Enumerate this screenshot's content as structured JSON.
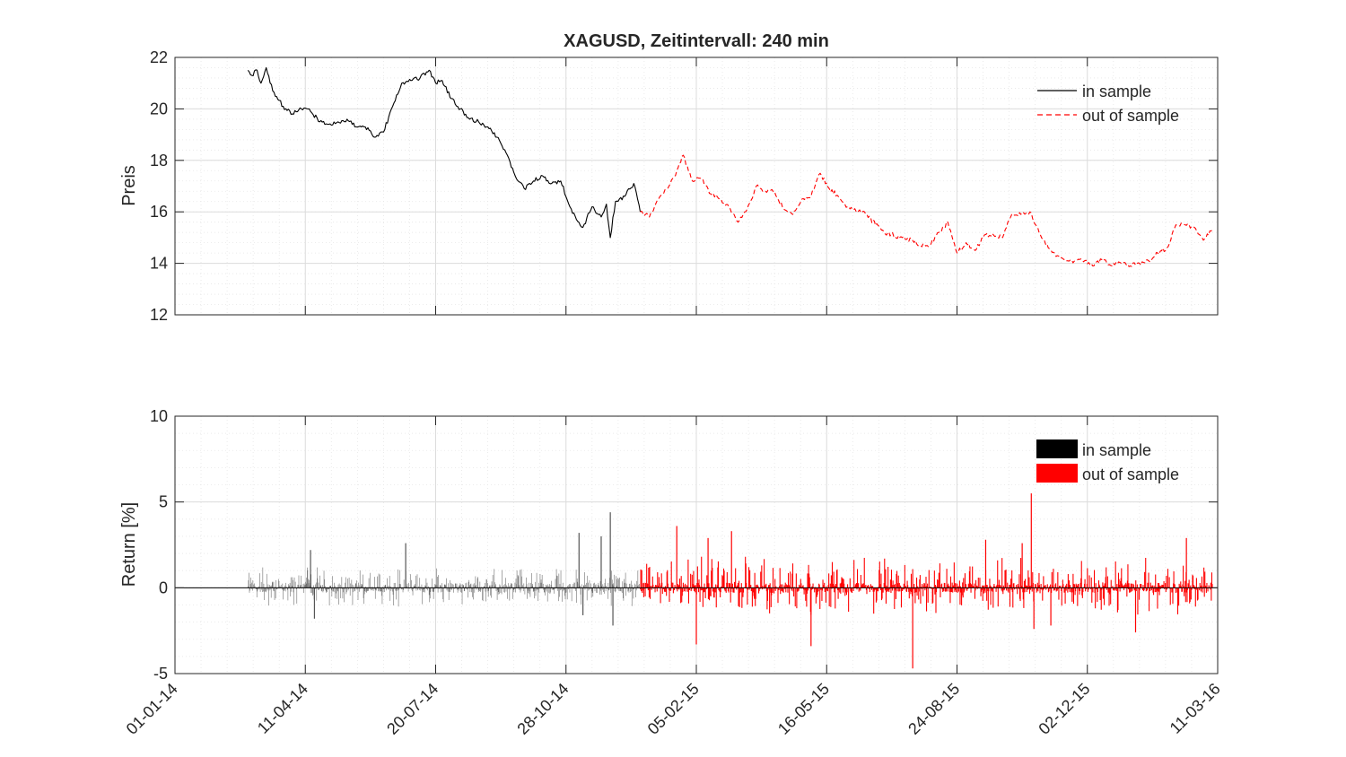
{
  "chart_data": [
    {
      "type": "line",
      "title": "XAGUSD, Zeitintervall: 240 min",
      "xlabel": "",
      "ylabel": "Preis",
      "x_axis_type": "date",
      "xlim": [
        "2014-01-01",
        "2016-03-11"
      ],
      "ylim": [
        12,
        22
      ],
      "yticks": [
        12,
        14,
        16,
        18,
        20,
        22
      ],
      "xtick_labels": [
        "01-01-14",
        "11-04-14",
        "20-07-14",
        "28-10-14",
        "05-02-15",
        "16-05-15",
        "24-08-15",
        "02-12-15",
        "11-03-16"
      ],
      "grid": true,
      "minor_grid": true,
      "legend_position": "top-right",
      "series": [
        {
          "name": "in sample",
          "style": "solid",
          "color": "#000000",
          "x": [
            "2014-02-26",
            "2014-03-01",
            "2014-03-05",
            "2014-03-08",
            "2014-03-12",
            "2014-03-17",
            "2014-03-25",
            "2014-04-01",
            "2014-04-08",
            "2014-04-15",
            "2014-04-22",
            "2014-04-29",
            "2014-05-06",
            "2014-05-13",
            "2014-05-20",
            "2014-05-27",
            "2014-06-03",
            "2014-06-10",
            "2014-06-17",
            "2014-06-24",
            "2014-07-01",
            "2014-07-08",
            "2014-07-15",
            "2014-07-20",
            "2014-07-25",
            "2014-08-01",
            "2014-08-08",
            "2014-08-15",
            "2014-08-22",
            "2014-08-29",
            "2014-09-05",
            "2014-09-12",
            "2014-09-19",
            "2014-09-26",
            "2014-10-03",
            "2014-10-10",
            "2014-10-17",
            "2014-10-24",
            "2014-10-31",
            "2014-11-05",
            "2014-11-10",
            "2014-11-17",
            "2014-11-24",
            "2014-11-28",
            "2014-12-01",
            "2014-12-05",
            "2014-12-12",
            "2014-12-19",
            "2014-12-24"
          ],
          "values": [
            21.5,
            21.3,
            21.5,
            21.0,
            21.6,
            20.7,
            20.1,
            19.8,
            20.0,
            19.9,
            19.5,
            19.4,
            19.5,
            19.6,
            19.3,
            19.3,
            18.9,
            19.1,
            20.1,
            21.0,
            21.1,
            21.2,
            21.5,
            21.0,
            21.1,
            20.4,
            20.0,
            19.6,
            19.5,
            19.3,
            18.9,
            18.3,
            17.4,
            16.9,
            17.2,
            17.4,
            17.1,
            17.2,
            16.2,
            15.7,
            15.4,
            16.2,
            15.8,
            16.3,
            15.0,
            16.4,
            16.6,
            17.1,
            16.0
          ]
        },
        {
          "name": "out of sample",
          "style": "dashed",
          "color": "#ff0000",
          "x": [
            "2014-12-24",
            "2014-12-31",
            "2015-01-07",
            "2015-01-14",
            "2015-01-21",
            "2015-01-26",
            "2015-02-02",
            "2015-02-09",
            "2015-02-16",
            "2015-02-23",
            "2015-03-02",
            "2015-03-09",
            "2015-03-16",
            "2015-03-23",
            "2015-03-30",
            "2015-04-06",
            "2015-04-13",
            "2015-04-20",
            "2015-04-27",
            "2015-05-04",
            "2015-05-11",
            "2015-05-18",
            "2015-05-25",
            "2015-06-01",
            "2015-06-15",
            "2015-06-29",
            "2015-07-13",
            "2015-07-20",
            "2015-07-27",
            "2015-08-03",
            "2015-08-10",
            "2015-08-17",
            "2015-08-24",
            "2015-08-31",
            "2015-09-07",
            "2015-09-14",
            "2015-09-21",
            "2015-09-28",
            "2015-10-05",
            "2015-10-12",
            "2015-10-19",
            "2015-10-26",
            "2015-11-02",
            "2015-11-09",
            "2015-11-16",
            "2015-11-23",
            "2015-11-30",
            "2015-12-07",
            "2015-12-14",
            "2015-12-21",
            "2015-12-28",
            "2016-01-04",
            "2016-01-11",
            "2016-01-18",
            "2016-01-25",
            "2016-02-01",
            "2016-02-08",
            "2016-02-15",
            "2016-02-22",
            "2016-02-29",
            "2016-03-07"
          ],
          "values": [
            16.0,
            15.8,
            16.5,
            16.9,
            17.6,
            18.2,
            17.2,
            17.3,
            16.7,
            16.5,
            16.2,
            15.6,
            16.1,
            17.0,
            16.8,
            16.8,
            16.1,
            15.9,
            16.5,
            16.6,
            17.5,
            16.9,
            16.6,
            16.2,
            15.9,
            15.2,
            15.0,
            14.9,
            14.7,
            14.7,
            15.2,
            15.6,
            14.4,
            14.8,
            14.5,
            15.1,
            15.1,
            15.0,
            15.9,
            15.9,
            16.0,
            15.2,
            14.6,
            14.3,
            14.1,
            14.1,
            14.1,
            13.9,
            14.2,
            13.9,
            14.0,
            13.9,
            14.0,
            14.1,
            14.4,
            14.6,
            15.5,
            15.5,
            15.4,
            14.9,
            15.3
          ]
        }
      ]
    },
    {
      "type": "bar",
      "title": "",
      "xlabel": "",
      "ylabel": "Return [%]",
      "x_axis_type": "date",
      "xlim": [
        "2014-01-01",
        "2016-03-11"
      ],
      "ylim": [
        -5,
        10
      ],
      "yticks": [
        -5,
        0,
        5,
        10
      ],
      "xtick_labels": [
        "01-01-14",
        "11-04-14",
        "20-07-14",
        "28-10-14",
        "05-02-15",
        "16-05-15",
        "24-08-15",
        "02-12-15",
        "11-03-16"
      ],
      "grid": true,
      "minor_grid": true,
      "legend_position": "top-right",
      "series": [
        {
          "name": "in sample",
          "color": "#000000",
          "x_range": [
            "2014-02-26",
            "2014-12-24"
          ],
          "spikes": [
            {
              "x": "2014-04-15",
              "value": 2.2
            },
            {
              "x": "2014-04-18",
              "value": -1.8
            },
            {
              "x": "2014-06-27",
              "value": 2.6
            },
            {
              "x": "2014-11-07",
              "value": 3.2
            },
            {
              "x": "2014-11-10",
              "value": -1.6
            },
            {
              "x": "2014-11-24",
              "value": 3.0
            },
            {
              "x": "2014-12-01",
              "value": 4.4
            },
            {
              "x": "2014-12-03",
              "value": -2.2
            }
          ],
          "typical_range": [
            -1.1,
            1.2
          ]
        },
        {
          "name": "out of sample",
          "color": "#ff0000",
          "x_range": [
            "2014-12-24",
            "2016-03-07"
          ],
          "spikes": [
            {
              "x": "2015-01-21",
              "value": 3.6
            },
            {
              "x": "2015-02-05",
              "value": -3.3
            },
            {
              "x": "2015-02-14",
              "value": 2.9
            },
            {
              "x": "2015-03-04",
              "value": 3.3
            },
            {
              "x": "2015-05-04",
              "value": -3.4
            },
            {
              "x": "2015-07-21",
              "value": -4.7
            },
            {
              "x": "2015-09-15",
              "value": 2.8
            },
            {
              "x": "2015-10-13",
              "value": 2.6
            },
            {
              "x": "2015-10-20",
              "value": 5.5
            },
            {
              "x": "2015-10-22",
              "value": -2.4
            },
            {
              "x": "2015-11-04",
              "value": -2.2
            },
            {
              "x": "2016-01-08",
              "value": -2.6
            },
            {
              "x": "2016-02-16",
              "value": 2.9
            }
          ],
          "typical_range": [
            -1.6,
            1.9
          ]
        }
      ]
    }
  ],
  "colors": {
    "in_sample": "#000000",
    "out_of_sample": "#ff0000",
    "grid": "#dfdfdf",
    "axes": "#262626"
  }
}
